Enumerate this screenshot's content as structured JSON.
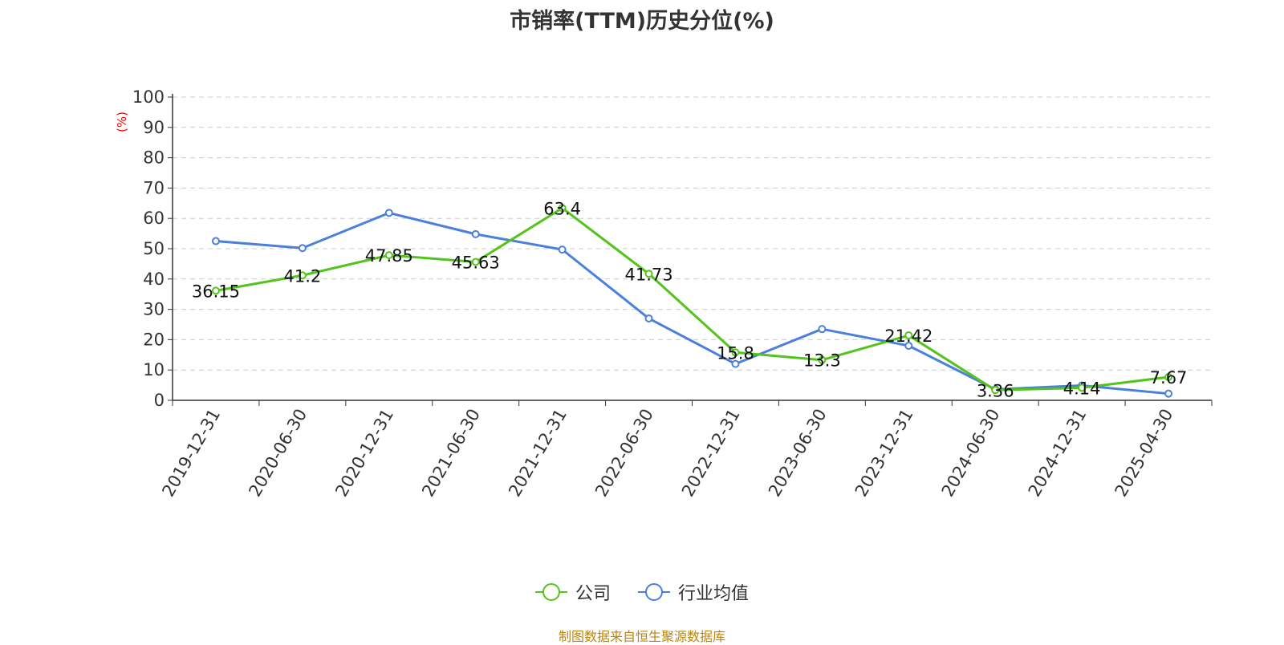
{
  "chart_data": {
    "type": "line",
    "title": "市销率(TTM)历史分位(%)",
    "ylabel": "(%)",
    "xlabel": "",
    "ylim": [
      0,
      100
    ],
    "yticks": [
      0,
      10,
      20,
      30,
      40,
      50,
      60,
      70,
      80,
      90,
      100
    ],
    "grid": true,
    "legend_position": "bottom",
    "categories": [
      "2019-12-31",
      "2020-06-30",
      "2020-12-31",
      "2021-06-30",
      "2021-12-31",
      "2022-06-30",
      "2022-12-31",
      "2023-06-30",
      "2023-12-31",
      "2024-06-30",
      "2024-12-31",
      "2025-04-30"
    ],
    "series": [
      {
        "name": "公司",
        "color": "#52c41a",
        "values": [
          36.15,
          41.2,
          47.85,
          45.63,
          63.4,
          41.73,
          15.8,
          13.3,
          21.42,
          3.36,
          4.14,
          7.67
        ],
        "labels": [
          "36.15",
          "41.2",
          "47.85",
          "45.63",
          "63.4",
          "41.73",
          "15.8",
          "13.3",
          "21.42",
          "3.36",
          "4.14",
          "7.67"
        ]
      },
      {
        "name": "行业均值",
        "color": "#4a7fdc",
        "values": [
          52.5,
          50.2,
          61.8,
          54.8,
          49.7,
          27.0,
          12.0,
          23.5,
          18.0,
          3.6,
          4.9,
          2.2
        ]
      }
    ]
  },
  "footer": {
    "source": "制图数据来自恒生聚源数据库"
  }
}
